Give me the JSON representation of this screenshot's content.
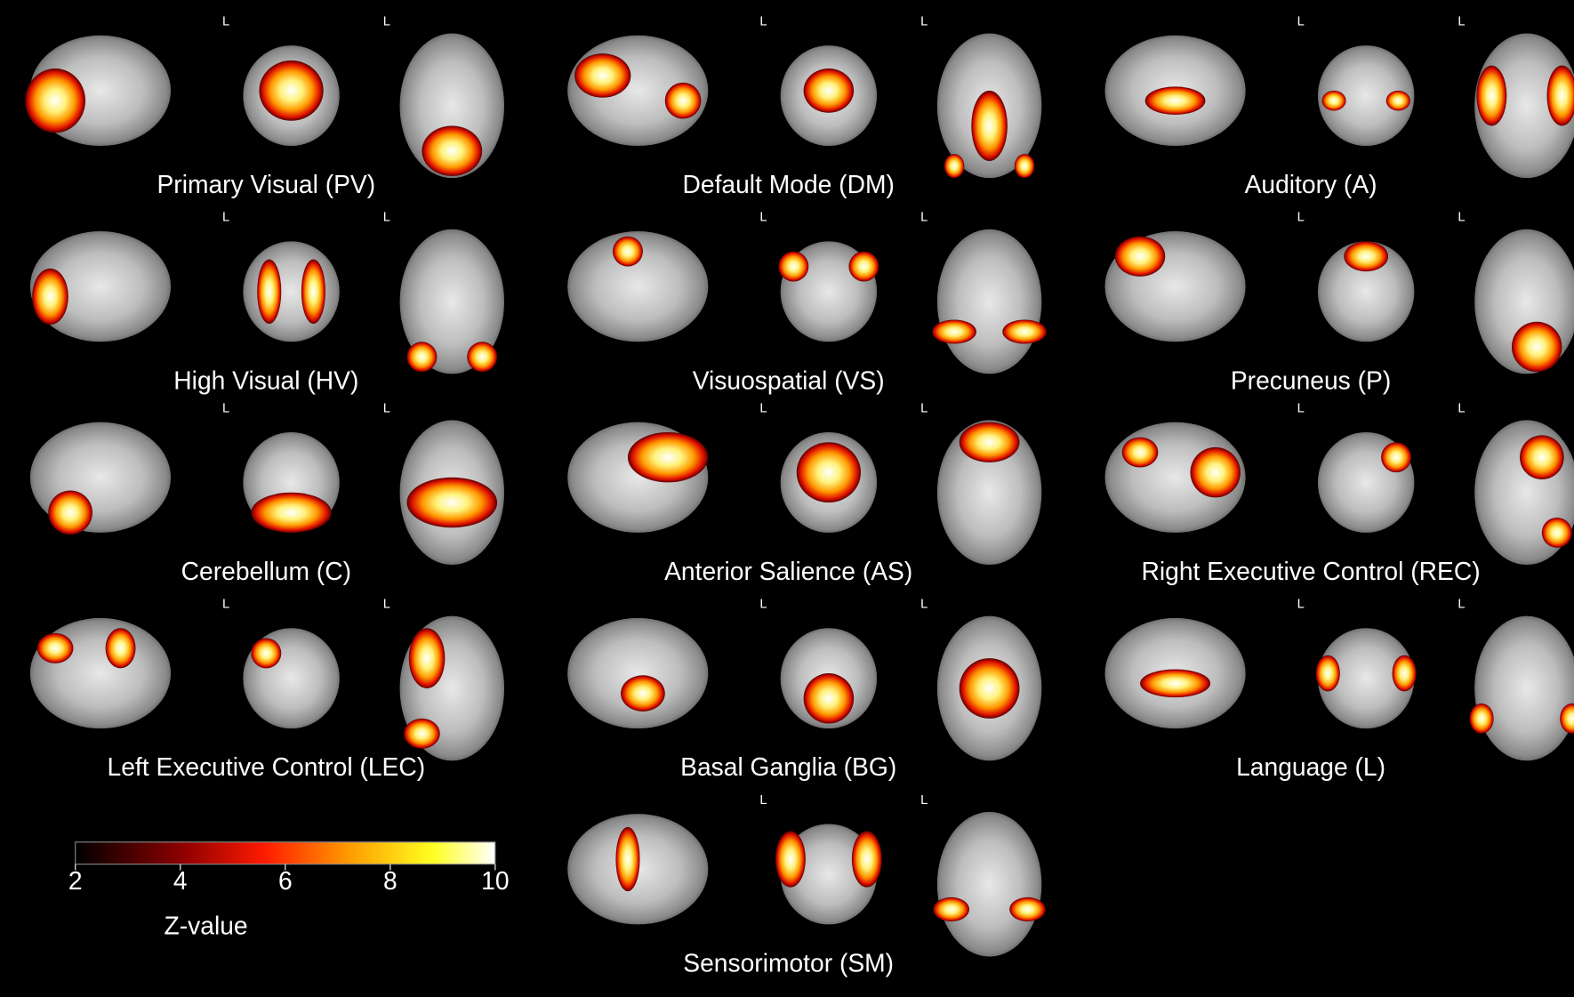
{
  "orientation_marker": "L",
  "networks": [
    {
      "label": "Primary Visual (PV)"
    },
    {
      "label": "Default Mode (DM)"
    },
    {
      "label": "Auditory (A)"
    },
    {
      "label": "High Visual (HV)"
    },
    {
      "label": "Visuospatial (VS)"
    },
    {
      "label": "Precuneus (P)"
    },
    {
      "label": "Cerebellum (C)"
    },
    {
      "label": "Anterior Salience (AS)"
    },
    {
      "label": "Right Executive Control (REC)"
    },
    {
      "label": "Left Executive Control (LEC)"
    },
    {
      "label": "Basal Ganglia (BG)"
    },
    {
      "label": "Language (L)"
    },
    {
      "label": "Sensorimotor (SM)"
    }
  ],
  "colorbar": {
    "label": "Z-value",
    "lim": [
      2,
      10
    ],
    "ticks": [
      2,
      4,
      6,
      8,
      10
    ]
  }
}
